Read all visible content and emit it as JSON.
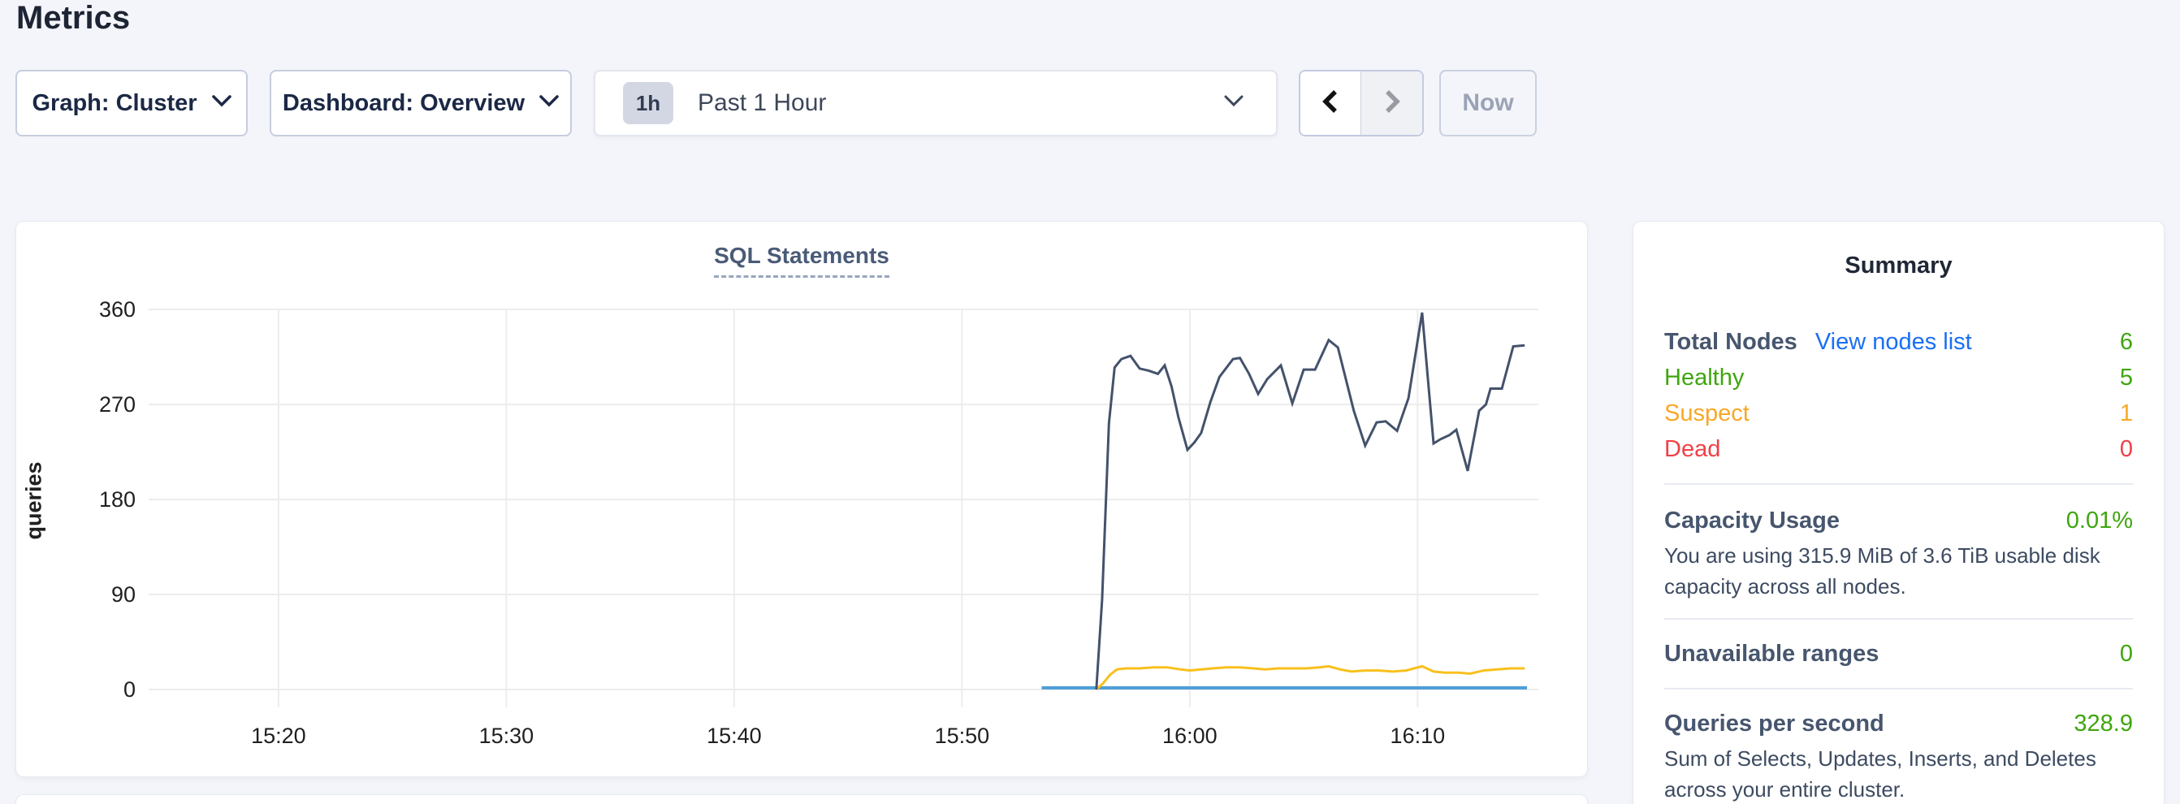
{
  "page": {
    "title": "Metrics"
  },
  "toolbar": {
    "graph_dropdown": {
      "label": "Graph: Cluster"
    },
    "dashboard_dropdown": {
      "label": "Dashboard: Overview"
    },
    "time_selector": {
      "badge": "1h",
      "label": "Past 1 Hour"
    },
    "now_button": "Now"
  },
  "summary": {
    "title": "Summary",
    "nodes": {
      "label": "Total Nodes",
      "link": "View nodes list",
      "value": "6",
      "status_rows": [
        {
          "label": "Healthy",
          "value": "5",
          "color": "#3fa60e"
        },
        {
          "label": "Suspect",
          "value": "1",
          "color": "#f7a827"
        },
        {
          "label": "Dead",
          "value": "0",
          "color": "#ef4046"
        }
      ]
    },
    "capacity": {
      "label": "Capacity Usage",
      "value": "0.01%",
      "description": "You are using 315.9 MiB of 3.6 TiB usable disk capacity across all nodes."
    },
    "unavailable": {
      "label": "Unavailable ranges",
      "value": "0"
    },
    "qps": {
      "label": "Queries per second",
      "value": "328.9",
      "description": "Sum of Selects, Updates, Inserts, and Deletes across your entire cluster."
    }
  },
  "chart_data": {
    "type": "line",
    "title": "SQL Statements",
    "ylabel": "queries",
    "xlabel": "",
    "grid": true,
    "legend": "none",
    "yticks": [
      0,
      90,
      180,
      270,
      360
    ],
    "ylim": [
      0,
      360
    ],
    "x_axis": {
      "unit": "minutes-after-15:00",
      "lim": [
        14.3,
        75.3
      ],
      "ticks": [
        {
          "t": 20,
          "label": "15:20"
        },
        {
          "t": 30,
          "label": "15:30"
        },
        {
          "t": 40,
          "label": "15:40"
        },
        {
          "t": 50,
          "label": "15:50"
        },
        {
          "t": 60,
          "label": "16:00"
        },
        {
          "t": 70,
          "label": "16:10"
        }
      ]
    },
    "series": [
      {
        "name": "blue-flat",
        "color": "#4e9fd8",
        "width": 4,
        "points": [
          [
            53.5,
            1.5
          ],
          [
            74.8,
            1.5
          ]
        ]
      },
      {
        "name": "yellow",
        "color": "#f8c01d",
        "width": 3,
        "points": [
          [
            55.9,
            0
          ],
          [
            56.2,
            6
          ],
          [
            56.5,
            14
          ],
          [
            56.8,
            19
          ],
          [
            57.2,
            20
          ],
          [
            57.8,
            20
          ],
          [
            58.4,
            21
          ],
          [
            59.0,
            21
          ],
          [
            59.6,
            19
          ],
          [
            60.0,
            18
          ],
          [
            60.5,
            19
          ],
          [
            61.0,
            20
          ],
          [
            61.6,
            21
          ],
          [
            62.2,
            21
          ],
          [
            62.8,
            20
          ],
          [
            63.3,
            19
          ],
          [
            63.9,
            20
          ],
          [
            64.5,
            20
          ],
          [
            65.1,
            20
          ],
          [
            65.7,
            21
          ],
          [
            66.1,
            22
          ],
          [
            66.6,
            19
          ],
          [
            67.1,
            17
          ],
          [
            67.7,
            18
          ],
          [
            68.3,
            18
          ],
          [
            68.9,
            17
          ],
          [
            69.5,
            18
          ],
          [
            70.2,
            22
          ],
          [
            70.7,
            17
          ],
          [
            71.2,
            16
          ],
          [
            71.8,
            16
          ],
          [
            72.3,
            15
          ],
          [
            72.9,
            18
          ],
          [
            73.5,
            19
          ],
          [
            74.1,
            20
          ],
          [
            74.7,
            20
          ]
        ]
      },
      {
        "name": "navy",
        "color": "#44526b",
        "width": 3,
        "points": [
          [
            55.9,
            0
          ],
          [
            56.15,
            85
          ],
          [
            56.45,
            252
          ],
          [
            56.7,
            305
          ],
          [
            57.0,
            313
          ],
          [
            57.4,
            316
          ],
          [
            57.8,
            304
          ],
          [
            58.2,
            302
          ],
          [
            58.6,
            299
          ],
          [
            58.9,
            307
          ],
          [
            59.2,
            287
          ],
          [
            59.5,
            258
          ],
          [
            59.9,
            227
          ],
          [
            60.2,
            234
          ],
          [
            60.5,
            243
          ],
          [
            60.9,
            272
          ],
          [
            61.3,
            296
          ],
          [
            61.9,
            313
          ],
          [
            62.2,
            314
          ],
          [
            62.6,
            299
          ],
          [
            63.0,
            280
          ],
          [
            63.4,
            294
          ],
          [
            64.0,
            307
          ],
          [
            64.5,
            271
          ],
          [
            65.0,
            303
          ],
          [
            65.5,
            303
          ],
          [
            66.1,
            331
          ],
          [
            66.5,
            324
          ],
          [
            67.2,
            264
          ],
          [
            67.7,
            231
          ],
          [
            68.2,
            253
          ],
          [
            68.6,
            254
          ],
          [
            69.1,
            245
          ],
          [
            69.6,
            276
          ],
          [
            70.2,
            357
          ],
          [
            70.7,
            233
          ],
          [
            71.0,
            237
          ],
          [
            71.4,
            241
          ],
          [
            71.7,
            246
          ],
          [
            72.2,
            207
          ],
          [
            72.7,
            264
          ],
          [
            73.0,
            270
          ],
          [
            73.2,
            285
          ],
          [
            73.7,
            285
          ],
          [
            74.2,
            325
          ],
          [
            74.7,
            326
          ]
        ]
      }
    ]
  }
}
